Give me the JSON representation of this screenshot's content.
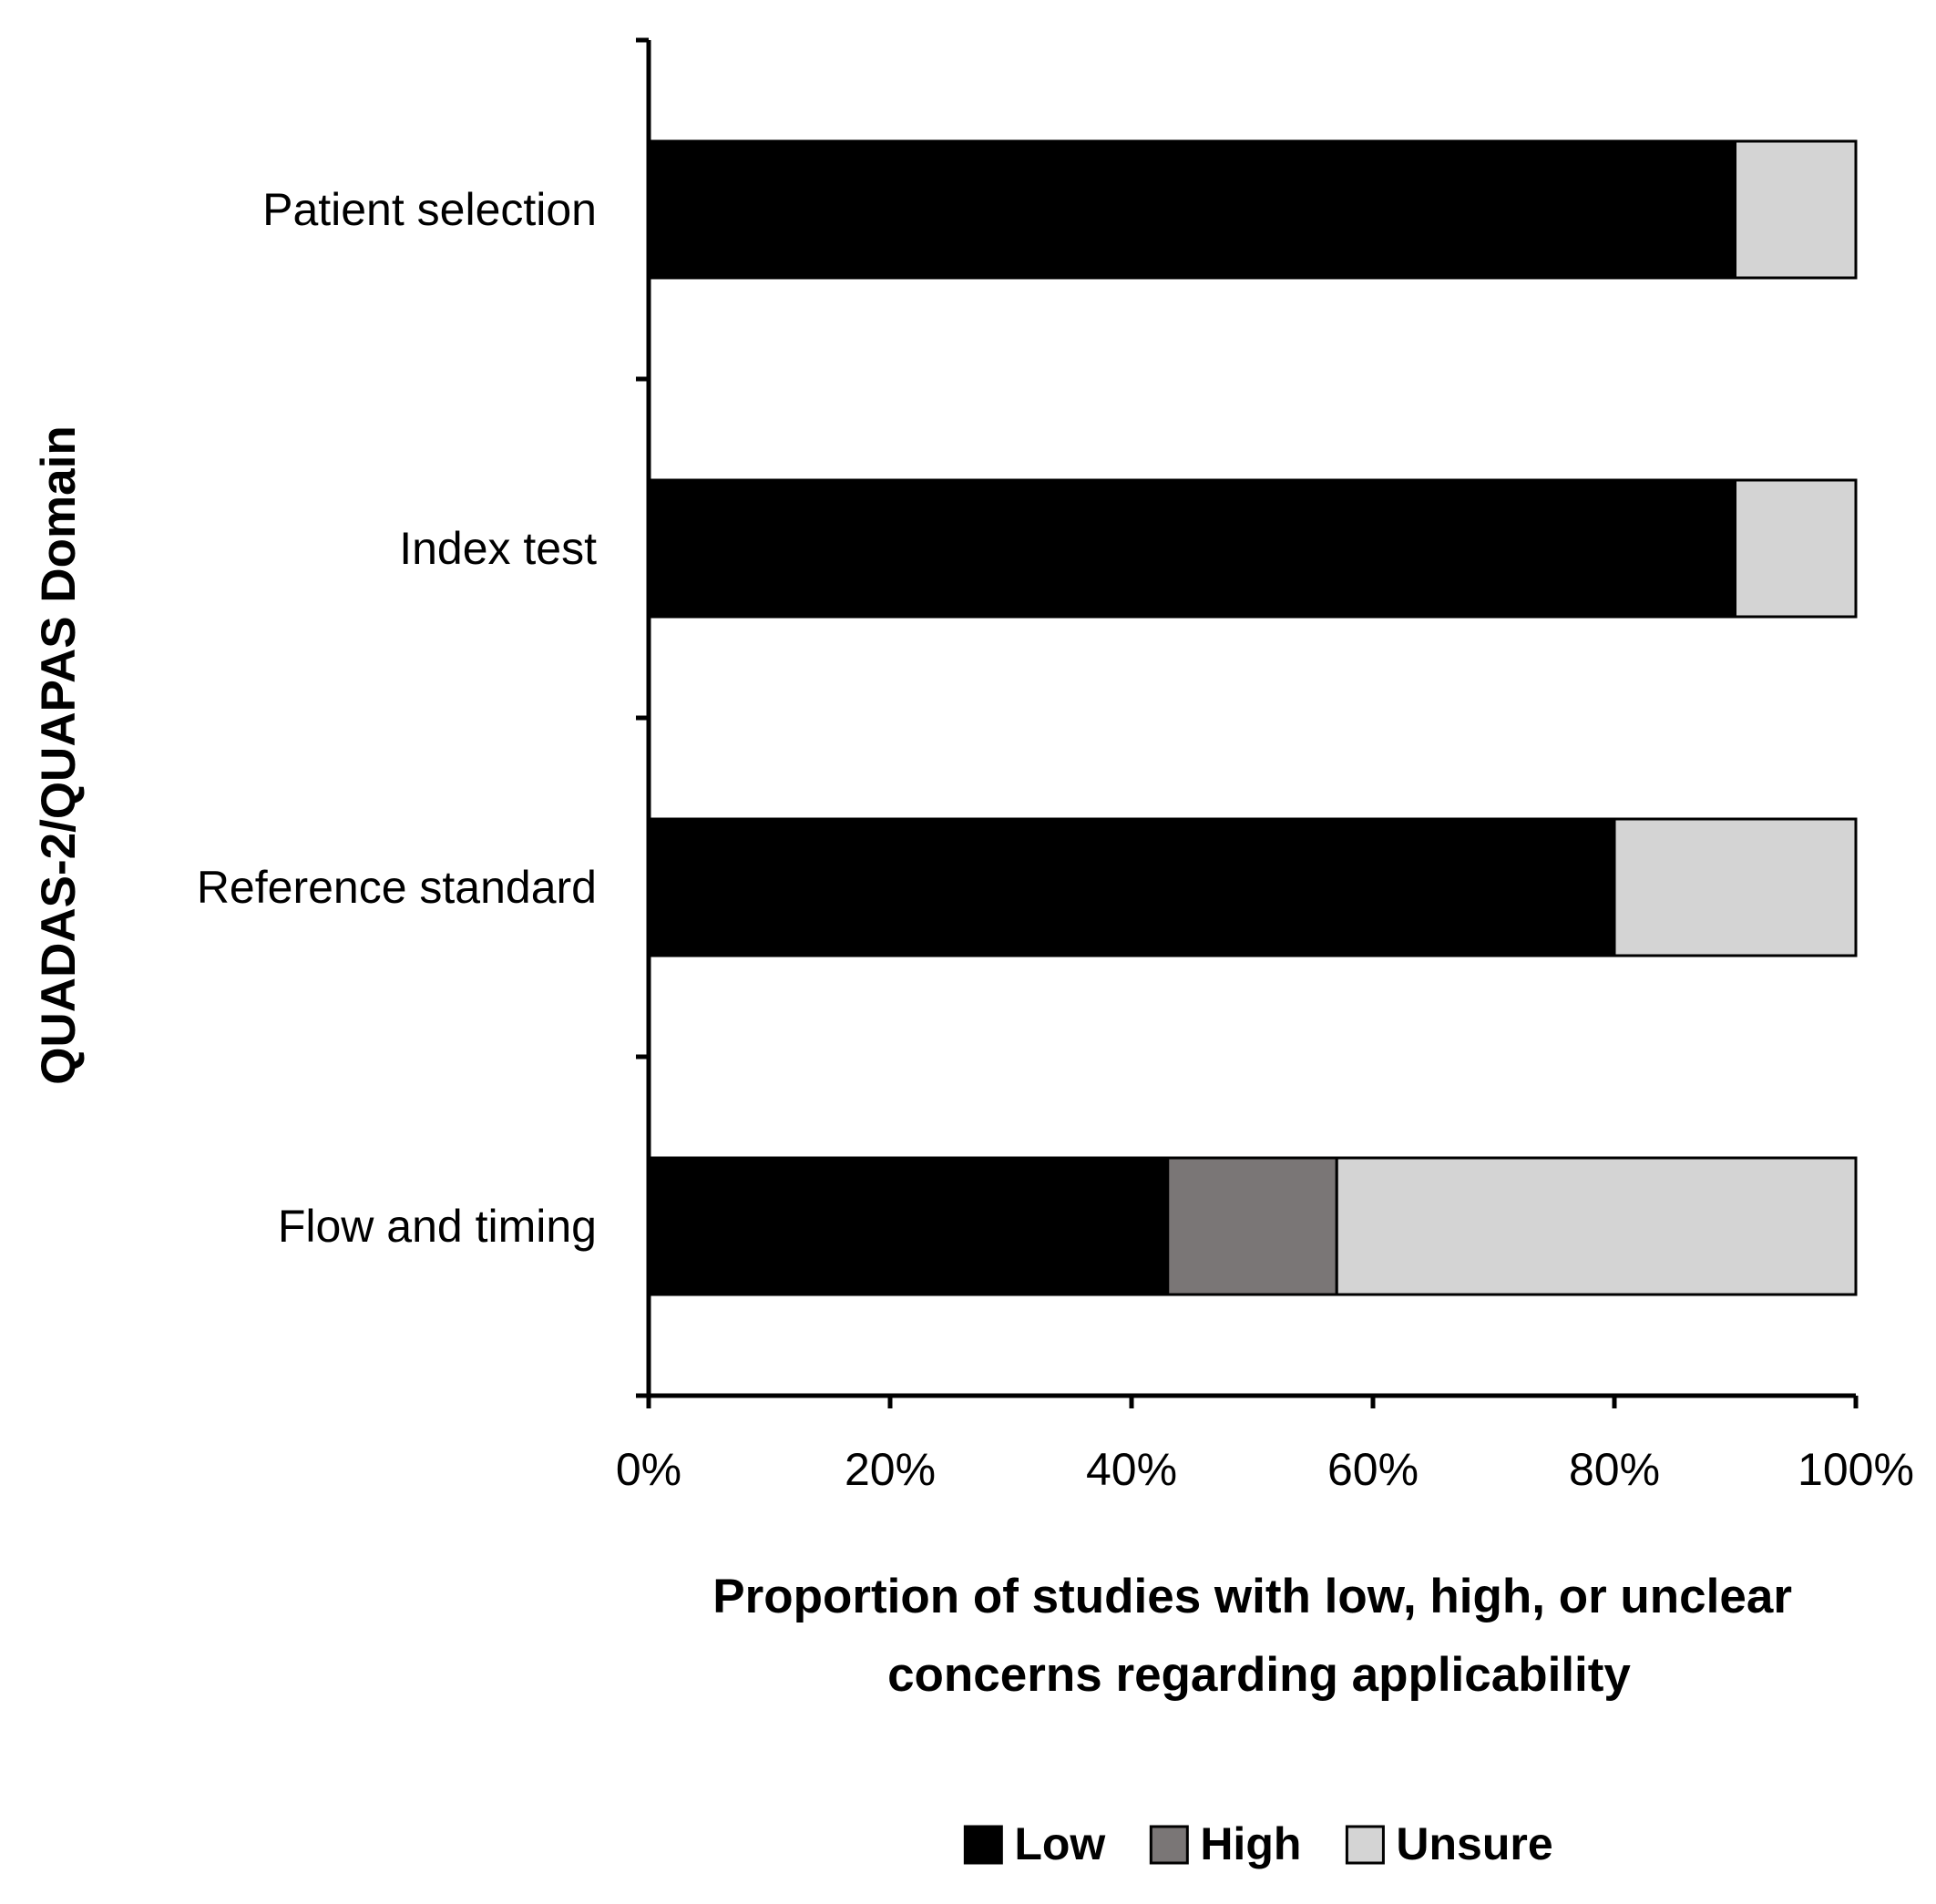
{
  "chart_data": {
    "type": "bar",
    "orientation": "horizontal",
    "stacked": true,
    "categories": [
      "Patient selection",
      "Index test",
      "Reference standard",
      "Flow and timing"
    ],
    "series": [
      {
        "name": "Low",
        "color": "#000000",
        "values": [
          90,
          90,
          80,
          43
        ]
      },
      {
        "name": "High",
        "color": "#7a7676",
        "values": [
          0,
          0,
          0,
          14
        ]
      },
      {
        "name": "Unsure",
        "color": "#d4d4d4",
        "values": [
          10,
          10,
          20,
          43
        ]
      }
    ],
    "xlim": [
      0,
      100
    ],
    "xticks": [
      0,
      20,
      40,
      60,
      80,
      100
    ],
    "xtick_labels": [
      "0%",
      "20%",
      "40%",
      "60%",
      "80%",
      "100%"
    ],
    "xlabel_lines": [
      "Proportion of studies with low, high, or unclear",
      "concerns regarding applicability"
    ],
    "ylabel": "QUADAS-2/QUAPAS Domain",
    "legend_position": "bottom",
    "grid": false
  }
}
